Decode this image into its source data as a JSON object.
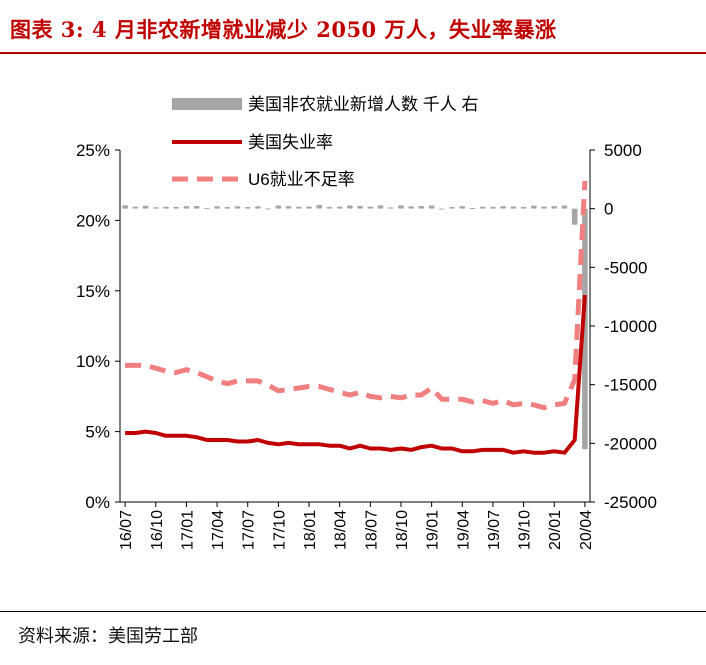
{
  "header": {
    "title": "图表 3: 4 月非农新增就业减少 2050 万人，失业率暴涨"
  },
  "footer": {
    "source": "资料来源：美国劳工部"
  },
  "chart_data": {
    "type": "line",
    "x": [
      "16/07",
      "16/08",
      "16/09",
      "16/10",
      "16/11",
      "16/12",
      "17/01",
      "17/02",
      "17/03",
      "17/04",
      "17/05",
      "17/06",
      "17/07",
      "17/08",
      "17/09",
      "17/10",
      "17/11",
      "17/12",
      "18/01",
      "18/02",
      "18/03",
      "18/04",
      "18/05",
      "18/06",
      "18/07",
      "18/08",
      "18/09",
      "18/10",
      "18/11",
      "18/12",
      "19/01",
      "19/02",
      "19/03",
      "19/04",
      "19/05",
      "19/06",
      "19/07",
      "19/08",
      "19/09",
      "19/10",
      "19/11",
      "19/12",
      "20/01",
      "20/02",
      "20/03",
      "20/04"
    ],
    "x_tick_labels": [
      "16/07",
      "16/10",
      "17/01",
      "17/04",
      "17/07",
      "17/10",
      "18/01",
      "18/04",
      "18/07",
      "18/10",
      "19/01",
      "19/04",
      "19/07",
      "19/10",
      "20/01",
      "20/04"
    ],
    "left_axis": {
      "ylim": [
        0,
        25
      ],
      "ticks": [
        "0%",
        "5%",
        "10%",
        "15%",
        "20%",
        "25%"
      ]
    },
    "right_axis": {
      "ylim": [
        -25000,
        5000
      ],
      "ticks": [
        "-25000",
        "-20000",
        "-15000",
        "-10000",
        "-5000",
        "0",
        "5000"
      ]
    },
    "legend_position": "top",
    "series": [
      {
        "name": "美国非农就业新增人数 千人 右",
        "kind": "bar",
        "axis": "right",
        "color": "#a6a6a6",
        "values": [
          291,
          176,
          249,
          124,
          164,
          155,
          216,
          232,
          50,
          207,
          145,
          210,
          138,
          208,
          18,
          271,
          216,
          175,
          176,
          324,
          155,
          175,
          270,
          235,
          178,
          282,
          108,
          277,
          196,
          227,
          269,
          1,
          147,
          216,
          62,
          178,
          166,
          219,
          180,
          156,
          261,
          184,
          214,
          275,
          -1373,
          -20500
        ]
      },
      {
        "name": "美国失业率",
        "kind": "line",
        "axis": "left",
        "color": "#c00000",
        "dash": false,
        "values": [
          4.9,
          4.9,
          5.0,
          4.9,
          4.7,
          4.7,
          4.7,
          4.6,
          4.4,
          4.4,
          4.4,
          4.3,
          4.3,
          4.4,
          4.2,
          4.1,
          4.2,
          4.1,
          4.1,
          4.1,
          4.0,
          4.0,
          3.8,
          4.0,
          3.8,
          3.8,
          3.7,
          3.8,
          3.7,
          3.9,
          4.0,
          3.8,
          3.8,
          3.6,
          3.6,
          3.7,
          3.7,
          3.7,
          3.5,
          3.6,
          3.5,
          3.5,
          3.6,
          3.5,
          4.4,
          14.7
        ]
      },
      {
        "name": "U6就业不足率",
        "kind": "line",
        "axis": "left",
        "color": "#f07f7f",
        "dash": true,
        "values": [
          9.7,
          9.7,
          9.7,
          9.5,
          9.3,
          9.2,
          9.4,
          9.2,
          8.9,
          8.6,
          8.4,
          8.6,
          8.6,
          8.6,
          8.3,
          7.9,
          8.0,
          8.1,
          8.2,
          8.2,
          8.0,
          7.8,
          7.6,
          7.8,
          7.5,
          7.4,
          7.5,
          7.4,
          7.6,
          7.6,
          8.1,
          7.3,
          7.3,
          7.3,
          7.1,
          7.2,
          7.0,
          7.2,
          6.9,
          7.0,
          6.9,
          6.7,
          6.9,
          7.0,
          8.7,
          22.8
        ]
      }
    ]
  }
}
